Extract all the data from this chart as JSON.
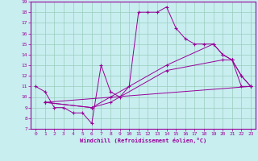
{
  "background_color": "#c8eef0",
  "grid_color": "#99ccbb",
  "line_color": "#990099",
  "xlim": [
    -0.5,
    23.5
  ],
  "ylim": [
    7,
    19
  ],
  "xticks": [
    0,
    1,
    2,
    3,
    4,
    5,
    6,
    7,
    8,
    9,
    10,
    11,
    12,
    13,
    14,
    15,
    16,
    17,
    18,
    19,
    20,
    21,
    22,
    23
  ],
  "yticks": [
    7,
    8,
    9,
    10,
    11,
    12,
    13,
    14,
    15,
    16,
    17,
    18,
    19
  ],
  "xlabel": "Windchill (Refroidissement éolien,°C)",
  "series1": [
    [
      0,
      11
    ],
    [
      1,
      10.5
    ],
    [
      2,
      9
    ],
    [
      3,
      9
    ],
    [
      4,
      8.5
    ],
    [
      5,
      8.5
    ],
    [
      6,
      7.5
    ],
    [
      7,
      13
    ],
    [
      8,
      10.5
    ],
    [
      9,
      10
    ],
    [
      10,
      11
    ],
    [
      11,
      18
    ],
    [
      12,
      18
    ],
    [
      13,
      18
    ],
    [
      14,
      18.5
    ],
    [
      15,
      16.5
    ],
    [
      16,
      15.5
    ],
    [
      17,
      15
    ],
    [
      18,
      15
    ],
    [
      19,
      15
    ],
    [
      20,
      14
    ],
    [
      21,
      13.5
    ],
    [
      22,
      12
    ],
    [
      23,
      11
    ]
  ],
  "series2": [
    [
      1,
      9.5
    ],
    [
      23,
      11
    ]
  ],
  "series3": [
    [
      1,
      9.5
    ],
    [
      6,
      9
    ],
    [
      8,
      9.5
    ],
    [
      14,
      12.5
    ],
    [
      20,
      13.5
    ],
    [
      21,
      13.5
    ],
    [
      22,
      11
    ],
    [
      23,
      11
    ]
  ],
  "series4": [
    [
      1,
      9.5
    ],
    [
      6,
      9
    ],
    [
      8,
      10
    ],
    [
      14,
      13
    ],
    [
      19,
      15
    ],
    [
      20,
      14
    ],
    [
      21,
      13.5
    ],
    [
      22,
      12
    ],
    [
      23,
      11
    ]
  ]
}
